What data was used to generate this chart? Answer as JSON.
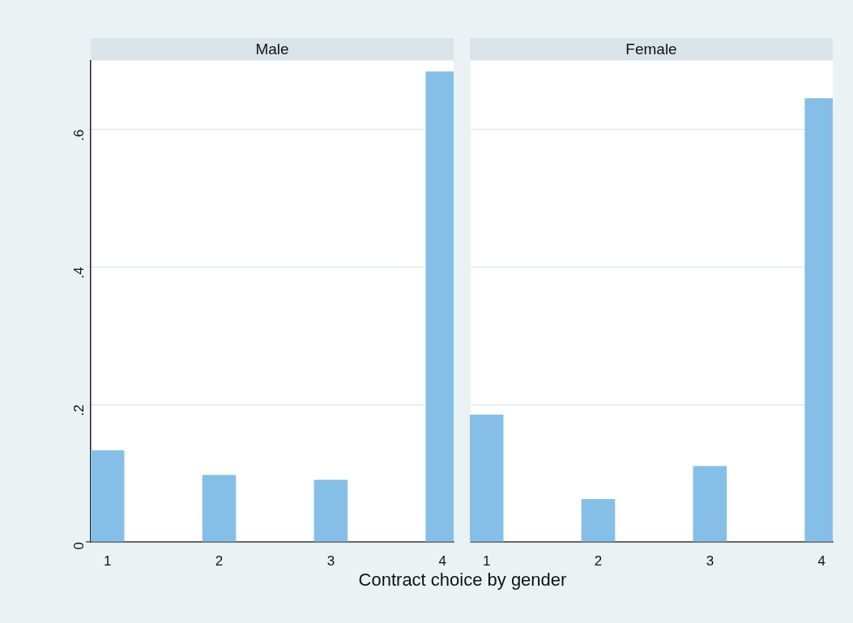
{
  "chart_data": [
    {
      "type": "bar",
      "title": "Male",
      "xlabel": "Contract choice by gender",
      "x": [
        1,
        2,
        3,
        4
      ],
      "values": [
        0.133,
        0.097,
        0.09,
        0.684
      ],
      "color": "#85bfe8",
      "xlim": [
        0.85,
        4.1
      ],
      "xticks": [
        1,
        2,
        3,
        4
      ],
      "ylim": [
        0,
        0.7
      ],
      "yticks": [
        0,
        {
          "value": 0.2,
          "label": ".2"
        },
        {
          "value": 0.4,
          "label": ".4"
        },
        {
          "value": 0.6,
          "label": ".6"
        }
      ],
      "grid": "y"
    },
    {
      "type": "bar",
      "title": "Female",
      "x": [
        1,
        2,
        3,
        4
      ],
      "values": [
        0.185,
        0.062,
        0.11,
        0.645
      ],
      "color": "#85bfe8",
      "xlim": [
        0.85,
        4.1
      ],
      "xticks": [
        1,
        2,
        3,
        4
      ],
      "ylim": [
        0,
        0.7
      ],
      "yticks": [
        0,
        0.2,
        0.4,
        0.6
      ],
      "grid": "y",
      "tick_labels": "x"
    }
  ]
}
